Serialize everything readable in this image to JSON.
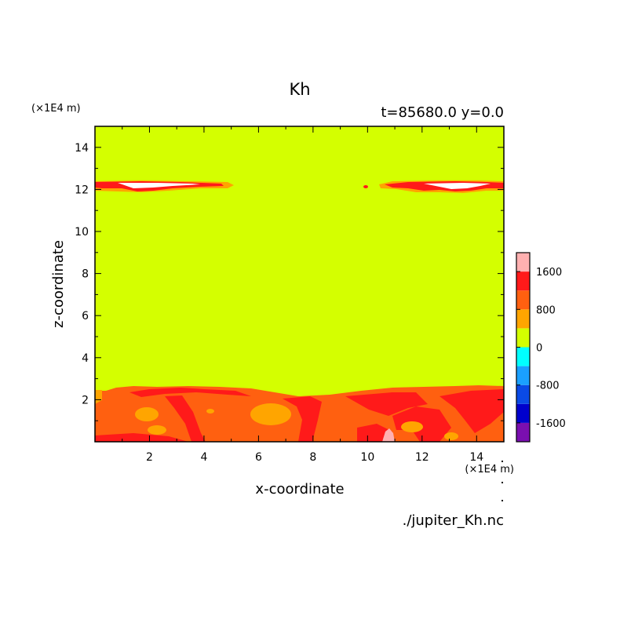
{
  "chart_data": {
    "type": "heatmap",
    "title": "Kh",
    "subtitle": "t=85680.0 y=0.0",
    "xlabel": "x-coordinate",
    "ylabel": "z-coordinate",
    "x_unit_label": "(×1E4 m)",
    "y_unit_label": "(×1E4 m)",
    "source_label": "./jupiter_Kh.nc",
    "xlim": [
      0,
      15
    ],
    "ylim": [
      0,
      15
    ],
    "x_ticks": [
      2,
      4,
      6,
      8,
      10,
      12,
      14
    ],
    "y_ticks": [
      2,
      4,
      6,
      8,
      10,
      12,
      14
    ],
    "colorbar": {
      "levels": [
        -2000,
        -1600,
        -1200,
        -800,
        -400,
        0,
        400,
        800,
        1200,
        1600,
        2000
      ],
      "colors": [
        "#7a0fb0",
        "#0000cd",
        "#0a4ae6",
        "#1aa0ff",
        "#00ffff",
        "#d4ff00",
        "#ffa500",
        "#ff6010",
        "#ff1a1a",
        "#ffb0b0"
      ],
      "tick_labels": [
        "1600",
        "800",
        "0",
        "-800",
        "-1600"
      ],
      "tick_values": [
        1600,
        800,
        0,
        -800,
        -1600
      ]
    },
    "background_color": "#d4ff00"
  }
}
